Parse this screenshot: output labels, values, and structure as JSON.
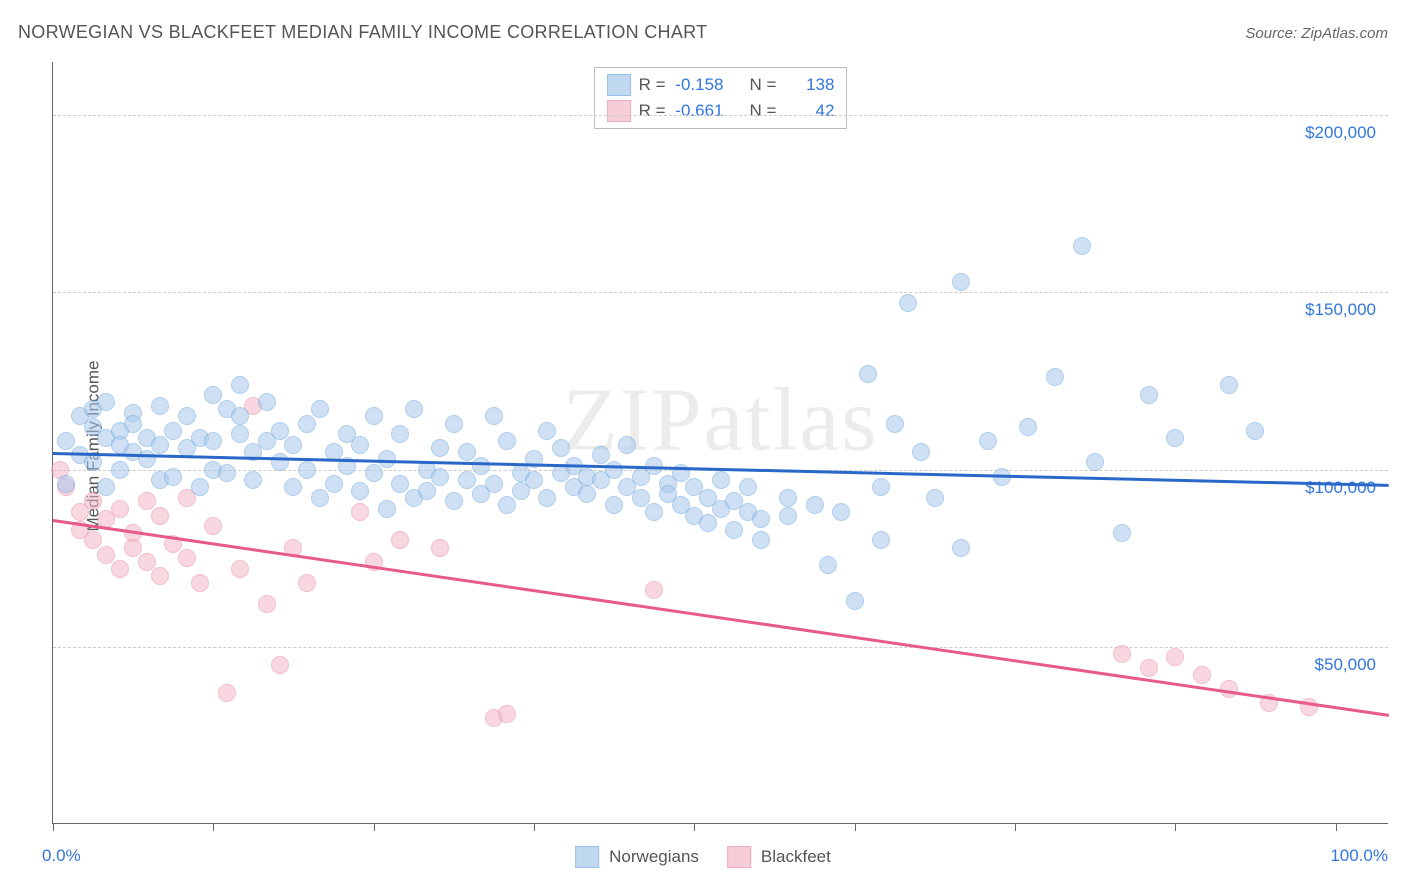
{
  "title": "NORWEGIAN VS BLACKFEET MEDIAN FAMILY INCOME CORRELATION CHART",
  "source_label": "Source:",
  "source_value": "ZipAtlas.com",
  "watermark": "ZIPatlas",
  "ylabel": "Median Family Income",
  "xaxis": {
    "min_label": "0.0%",
    "max_label": "100.0%",
    "min": 0,
    "max": 100
  },
  "yaxis": {
    "min": 0,
    "max": 215000,
    "ticks": [
      {
        "v": 50000,
        "label": "$50,000"
      },
      {
        "v": 100000,
        "label": "$100,000"
      },
      {
        "v": 150000,
        "label": "$150,000"
      },
      {
        "v": 200000,
        "label": "$200,000"
      }
    ]
  },
  "x_ticks_at": [
    0,
    12,
    24,
    36,
    48,
    60,
    72,
    84,
    96
  ],
  "series": [
    {
      "name": "Norwegians",
      "fill": "#a8c8ec",
      "stroke": "#6fa8de",
      "fill_opacity": 0.55,
      "marker_radius": 9,
      "trend": {
        "y_at_x0": 105000,
        "y_at_x100": 96000,
        "color": "#2968c8",
        "width": 2.5
      },
      "legend_stats": {
        "R": "-0.158",
        "N": "138"
      },
      "points": [
        [
          1,
          108000
        ],
        [
          1,
          96000
        ],
        [
          2,
          115000
        ],
        [
          2,
          104000
        ],
        [
          3,
          117000
        ],
        [
          3,
          112000
        ],
        [
          3,
          102000
        ],
        [
          4,
          119000
        ],
        [
          4,
          109000
        ],
        [
          4,
          95000
        ],
        [
          5,
          111000
        ],
        [
          5,
          107000
        ],
        [
          5,
          100000
        ],
        [
          6,
          116000
        ],
        [
          6,
          105000
        ],
        [
          6,
          113000
        ],
        [
          7,
          109000
        ],
        [
          7,
          103000
        ],
        [
          8,
          118000
        ],
        [
          8,
          107000
        ],
        [
          8,
          97000
        ],
        [
          9,
          111000
        ],
        [
          9,
          98000
        ],
        [
          10,
          106000
        ],
        [
          10,
          115000
        ],
        [
          11,
          109000
        ],
        [
          11,
          95000
        ],
        [
          12,
          121000
        ],
        [
          12,
          108000
        ],
        [
          12,
          100000
        ],
        [
          13,
          117000
        ],
        [
          13,
          99000
        ],
        [
          14,
          110000
        ],
        [
          14,
          115000
        ],
        [
          14,
          124000
        ],
        [
          15,
          105000
        ],
        [
          15,
          97000
        ],
        [
          16,
          108000
        ],
        [
          16,
          119000
        ],
        [
          17,
          102000
        ],
        [
          17,
          111000
        ],
        [
          18,
          95000
        ],
        [
          18,
          107000
        ],
        [
          19,
          113000
        ],
        [
          19,
          100000
        ],
        [
          20,
          117000
        ],
        [
          20,
          92000
        ],
        [
          21,
          105000
        ],
        [
          21,
          96000
        ],
        [
          22,
          110000
        ],
        [
          22,
          101000
        ],
        [
          23,
          94000
        ],
        [
          23,
          107000
        ],
        [
          24,
          99000
        ],
        [
          24,
          115000
        ],
        [
          25,
          89000
        ],
        [
          25,
          103000
        ],
        [
          26,
          96000
        ],
        [
          26,
          110000
        ],
        [
          27,
          92000
        ],
        [
          27,
          117000
        ],
        [
          28,
          100000
        ],
        [
          28,
          94000
        ],
        [
          29,
          106000
        ],
        [
          29,
          98000
        ],
        [
          30,
          91000
        ],
        [
          30,
          113000
        ],
        [
          31,
          97000
        ],
        [
          31,
          105000
        ],
        [
          32,
          93000
        ],
        [
          32,
          101000
        ],
        [
          33,
          96000
        ],
        [
          33,
          115000
        ],
        [
          34,
          90000
        ],
        [
          34,
          108000
        ],
        [
          35,
          99000
        ],
        [
          35,
          94000
        ],
        [
          36,
          103000
        ],
        [
          36,
          97000
        ],
        [
          37,
          111000
        ],
        [
          37,
          92000
        ],
        [
          38,
          99000
        ],
        [
          38,
          106000
        ],
        [
          39,
          95000
        ],
        [
          39,
          101000
        ],
        [
          40,
          98000
        ],
        [
          40,
          93000
        ],
        [
          41,
          104000
        ],
        [
          41,
          97000
        ],
        [
          42,
          90000
        ],
        [
          42,
          100000
        ],
        [
          43,
          95000
        ],
        [
          43,
          107000
        ],
        [
          44,
          92000
        ],
        [
          44,
          98000
        ],
        [
          45,
          101000
        ],
        [
          45,
          88000
        ],
        [
          46,
          96000
        ],
        [
          46,
          93000
        ],
        [
          47,
          90000
        ],
        [
          47,
          99000
        ],
        [
          48,
          87000
        ],
        [
          48,
          95000
        ],
        [
          49,
          92000
        ],
        [
          49,
          85000
        ],
        [
          50,
          89000
        ],
        [
          50,
          97000
        ],
        [
          51,
          83000
        ],
        [
          51,
          91000
        ],
        [
          52,
          88000
        ],
        [
          52,
          95000
        ],
        [
          53,
          86000
        ],
        [
          53,
          80000
        ],
        [
          55,
          87000
        ],
        [
          55,
          92000
        ],
        [
          57,
          90000
        ],
        [
          58,
          73000
        ],
        [
          59,
          88000
        ],
        [
          60,
          63000
        ],
        [
          61,
          127000
        ],
        [
          62,
          95000
        ],
        [
          62,
          80000
        ],
        [
          63,
          113000
        ],
        [
          64,
          147000
        ],
        [
          65,
          105000
        ],
        [
          66,
          92000
        ],
        [
          68,
          153000
        ],
        [
          68,
          78000
        ],
        [
          70,
          108000
        ],
        [
          71,
          98000
        ],
        [
          73,
          112000
        ],
        [
          75,
          126000
        ],
        [
          77,
          163000
        ],
        [
          78,
          102000
        ],
        [
          80,
          82000
        ],
        [
          82,
          121000
        ],
        [
          84,
          109000
        ],
        [
          88,
          124000
        ],
        [
          90,
          111000
        ]
      ]
    },
    {
      "name": "Blackfeet",
      "fill": "#f5b8c8",
      "stroke": "#e88ba5",
      "fill_opacity": 0.55,
      "marker_radius": 9,
      "trend": {
        "y_at_x0": 86000,
        "y_at_x100": 31000,
        "color": "#e75a8a",
        "width": 2.5
      },
      "legend_stats": {
        "R": "-0.661",
        "N": "42"
      },
      "points": [
        [
          0.5,
          100000
        ],
        [
          1,
          95000
        ],
        [
          2,
          88000
        ],
        [
          2,
          83000
        ],
        [
          3,
          91000
        ],
        [
          3,
          80000
        ],
        [
          4,
          86000
        ],
        [
          4,
          76000
        ],
        [
          5,
          89000
        ],
        [
          5,
          72000
        ],
        [
          6,
          82000
        ],
        [
          6,
          78000
        ],
        [
          7,
          91000
        ],
        [
          7,
          74000
        ],
        [
          8,
          87000
        ],
        [
          8,
          70000
        ],
        [
          9,
          79000
        ],
        [
          10,
          92000
        ],
        [
          10,
          75000
        ],
        [
          11,
          68000
        ],
        [
          12,
          84000
        ],
        [
          13,
          37000
        ],
        [
          14,
          72000
        ],
        [
          15,
          118000
        ],
        [
          16,
          62000
        ],
        [
          17,
          45000
        ],
        [
          18,
          78000
        ],
        [
          19,
          68000
        ],
        [
          23,
          88000
        ],
        [
          24,
          74000
        ],
        [
          26,
          80000
        ],
        [
          29,
          78000
        ],
        [
          33,
          30000
        ],
        [
          34,
          31000
        ],
        [
          45,
          66000
        ],
        [
          80,
          48000
        ],
        [
          82,
          44000
        ],
        [
          84,
          47000
        ],
        [
          86,
          42000
        ],
        [
          88,
          38000
        ],
        [
          91,
          34000
        ],
        [
          94,
          33000
        ]
      ]
    }
  ],
  "colors": {
    "title": "#555555",
    "axis": "#666666",
    "grid": "#cccccc",
    "tick_label": "#3377dd",
    "background": "#ffffff"
  },
  "legend_top_labels": {
    "R": "R =",
    "N": "N ="
  }
}
